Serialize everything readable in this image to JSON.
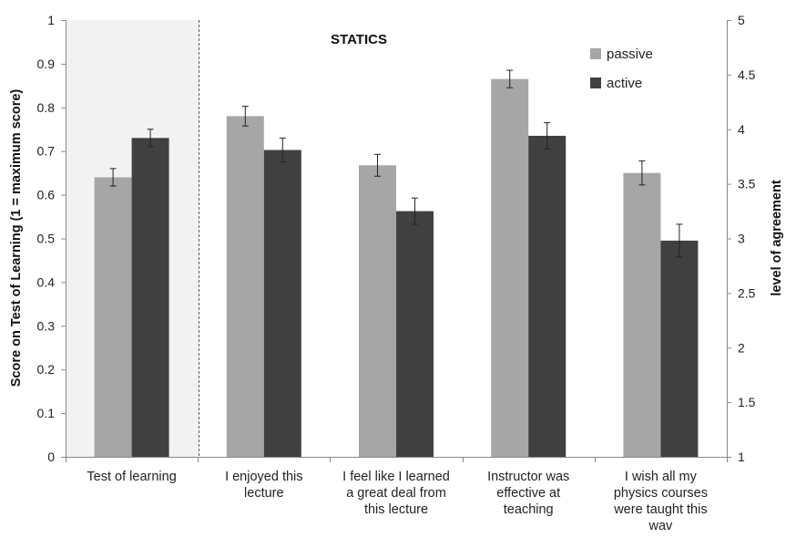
{
  "chart_data": {
    "type": "bar",
    "title": "STATICS",
    "ylabel_left": "Score on Test of Learning  (1 = maximum score)",
    "ylabel_right": "level of agreement",
    "ylim_left": [
      0,
      1
    ],
    "ylim_right": [
      1,
      5
    ],
    "yticks_left": [
      "0",
      "0.1",
      "0.2",
      "0.3",
      "0.4",
      "0.5",
      "0.6",
      "0.7",
      "0.8",
      "0.9",
      "1"
    ],
    "yticks_right": [
      "1",
      "1.5",
      "2",
      "2.5",
      "3",
      "3.5",
      "4",
      "4.5",
      "5"
    ],
    "categories": [
      {
        "lines": [
          "Test of learning"
        ],
        "axis": "left"
      },
      {
        "lines": [
          "I enjoyed this",
          "lecture"
        ],
        "axis": "right"
      },
      {
        "lines": [
          "I feel like I learned",
          "a great deal from",
          "this lecture"
        ],
        "axis": "right"
      },
      {
        "lines": [
          "Instructor was",
          "effective at",
          "teaching"
        ],
        "axis": "right"
      },
      {
        "lines": [
          "I wish all my",
          "physics courses",
          "were taught this",
          "wav"
        ],
        "axis": "right"
      }
    ],
    "series": [
      {
        "name": "passive",
        "color": "#a6a6a6",
        "values": [
          0.64,
          4.12,
          3.67,
          4.46,
          3.6
        ],
        "errors": [
          0.02,
          0.09,
          0.1,
          0.08,
          0.11
        ]
      },
      {
        "name": "active",
        "color": "#404040",
        "values": [
          0.73,
          3.81,
          3.25,
          3.94,
          2.98
        ],
        "errors": [
          0.02,
          0.11,
          0.12,
          0.12,
          0.15
        ]
      }
    ],
    "shaded_region_color": "#f2f2f2",
    "legend_position": "top-right",
    "grid": false
  }
}
